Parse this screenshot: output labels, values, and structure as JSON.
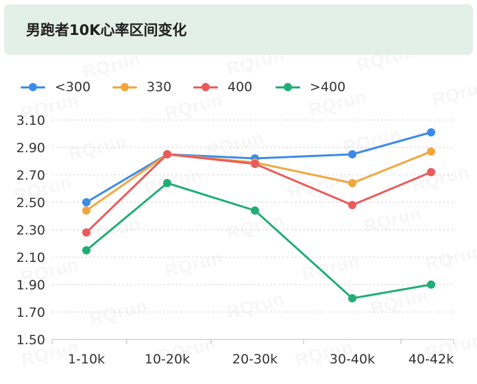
{
  "title": "男跑者10K心率区间变化",
  "watermark": "RQrun",
  "chart_data": {
    "type": "line",
    "title": "男跑者10K心率区间变化",
    "categories": [
      "1-10k",
      "10-20k",
      "20-30k",
      "30-40k",
      "40-42k"
    ],
    "series": [
      {
        "name": "<300",
        "color": "#3b8be8",
        "values": [
          2.5,
          2.85,
          2.82,
          2.85,
          3.01
        ]
      },
      {
        "name": "330",
        "color": "#f3a53c",
        "values": [
          2.44,
          2.85,
          2.79,
          2.64,
          2.87
        ]
      },
      {
        "name": "400",
        "color": "#eb5a5a",
        "values": [
          2.28,
          2.85,
          2.78,
          2.48,
          2.72
        ]
      },
      {
        "name": ">400",
        "color": "#1fae74",
        "values": [
          2.15,
          2.64,
          2.44,
          1.8,
          1.9
        ]
      }
    ],
    "yticks": [
      "3.10",
      "2.90",
      "2.70",
      "2.50",
      "2.30",
      "2.10",
      "1.90",
      "1.70",
      "1.50"
    ],
    "ylim": [
      1.5,
      3.1
    ],
    "grid": true,
    "legend": "top-left"
  }
}
